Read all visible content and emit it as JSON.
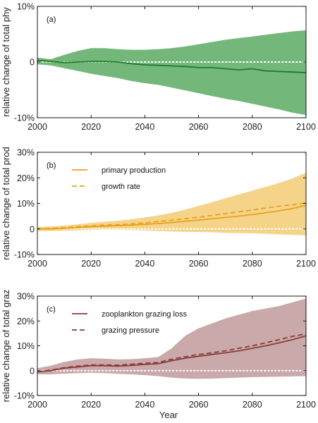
{
  "figure": {
    "xlabel": "Year"
  },
  "chart_data": [
    {
      "type": "line",
      "panel_label": "(a)",
      "ylabel": "relative change of total phy",
      "xlim": [
        2000,
        2100
      ],
      "ylim": [
        -10,
        10
      ],
      "xticks": [
        "2000",
        "2020",
        "2040",
        "2060",
        "2080",
        "2100"
      ],
      "yticks": [
        {
          "value": -10,
          "label": "-10%"
        },
        {
          "value": 0,
          "label": "0"
        },
        {
          "value": 10,
          "label": "10%"
        }
      ],
      "zero_reference_line": "white dotted",
      "colors": {
        "band": "#73b87a",
        "line": "#1e7a2a"
      },
      "x": [
        2000,
        2005,
        2010,
        2015,
        2020,
        2025,
        2030,
        2035,
        2040,
        2045,
        2050,
        2055,
        2060,
        2065,
        2070,
        2075,
        2080,
        2085,
        2090,
        2095,
        2100
      ],
      "band": {
        "upper": [
          0.8,
          0.5,
          1.3,
          2.0,
          2.5,
          2.5,
          2.3,
          2.2,
          2.2,
          2.3,
          2.5,
          2.8,
          3.2,
          3.6,
          4.0,
          4.3,
          4.6,
          4.9,
          5.2,
          5.5,
          5.7
        ],
        "lower": [
          -0.4,
          -0.6,
          -1.1,
          -1.6,
          -2.1,
          -2.5,
          -2.9,
          -3.4,
          -3.8,
          -4.1,
          -4.6,
          -5.1,
          -5.6,
          -6.1,
          -6.6,
          -7.0,
          -7.5,
          -8.0,
          -8.5,
          -9.1,
          -9.5
        ]
      },
      "series": [
        {
          "values": [
            0.3,
            0.1,
            -0.1,
            0.0,
            0.1,
            0.1,
            0.0,
            -0.3,
            -0.5,
            -0.6,
            -0.7,
            -0.8,
            -1.0,
            -1.0,
            -1.2,
            -1.4,
            -1.2,
            -1.6,
            -1.7,
            -1.8,
            -1.9
          ]
        }
      ]
    },
    {
      "type": "line",
      "panel_label": "(b)",
      "ylabel": "relative change of total prod",
      "xlim": [
        2000,
        2100
      ],
      "ylim": [
        -10,
        30
      ],
      "xticks": [
        "2000",
        "2020",
        "2040",
        "2060",
        "2080",
        "2100"
      ],
      "yticks": [
        {
          "value": -10,
          "label": "-10%"
        },
        {
          "value": 0,
          "label": "0"
        },
        {
          "value": 10,
          "label": "10%"
        },
        {
          "value": 20,
          "label": "20%"
        },
        {
          "value": 30,
          "label": "30%"
        }
      ],
      "zero_reference_line": "white dotted",
      "legend_position": "top-left",
      "colors": {
        "band": "#f5d48a",
        "line": "#e8a21c"
      },
      "x": [
        2000,
        2005,
        2010,
        2015,
        2020,
        2025,
        2030,
        2035,
        2040,
        2045,
        2050,
        2055,
        2060,
        2065,
        2070,
        2075,
        2080,
        2085,
        2090,
        2095,
        2100
      ],
      "band": {
        "upper": [
          0.8,
          1.0,
          1.3,
          1.8,
          2.4,
          2.8,
          3.2,
          3.8,
          4.5,
          5.3,
          6.3,
          7.6,
          9.0,
          10.5,
          12.0,
          13.5,
          15.0,
          16.5,
          18.0,
          19.8,
          22.0
        ],
        "lower": [
          -0.8,
          -0.8,
          -0.7,
          -0.6,
          -0.4,
          -0.3,
          -0.3,
          -0.4,
          -0.6,
          -0.8,
          -1.0,
          -1.1,
          -1.2,
          -1.3,
          -1.5,
          -1.6,
          -1.7,
          -1.9,
          -2.1,
          -2.3,
          -2.5
        ]
      },
      "series": [
        {
          "name": "primary production",
          "dash": "solid",
          "values": [
            0.0,
            0.0,
            0.2,
            0.5,
            0.9,
            1.1,
            1.3,
            1.5,
            1.8,
            2.1,
            2.5,
            3.0,
            3.5,
            4.0,
            4.5,
            5.0,
            5.6,
            6.3,
            7.1,
            8.0,
            9.2
          ]
        },
        {
          "name": "growth rate",
          "dash": "dashed",
          "values": [
            0.0,
            0.2,
            0.5,
            0.9,
            1.2,
            1.5,
            1.7,
            2.0,
            2.4,
            2.9,
            3.4,
            4.0,
            4.6,
            5.3,
            6.0,
            6.7,
            7.4,
            8.2,
            8.9,
            9.5,
            10.2
          ]
        }
      ]
    },
    {
      "type": "line",
      "panel_label": "(c)",
      "ylabel": "relative change of total graz",
      "xlim": [
        2000,
        2100
      ],
      "ylim": [
        -10,
        30
      ],
      "xticks": [
        "2000",
        "2020",
        "2040",
        "2060",
        "2080",
        "2100"
      ],
      "yticks": [
        {
          "value": -10,
          "label": "-10%"
        },
        {
          "value": 0,
          "label": "0"
        },
        {
          "value": 10,
          "label": "10%"
        },
        {
          "value": 20,
          "label": "20%"
        },
        {
          "value": 30,
          "label": "30%"
        }
      ],
      "zero_reference_line": "white dotted",
      "legend_position": "top-left",
      "colors": {
        "band": "#c9a9a9",
        "line": "#8a3c3c"
      },
      "x": [
        2000,
        2005,
        2010,
        2015,
        2020,
        2025,
        2030,
        2035,
        2040,
        2045,
        2050,
        2055,
        2060,
        2065,
        2070,
        2075,
        2080,
        2085,
        2090,
        2095,
        2100
      ],
      "band": {
        "upper": [
          1.0,
          2.0,
          3.5,
          4.5,
          5.0,
          4.8,
          4.5,
          4.6,
          5.0,
          5.5,
          9.0,
          14.0,
          17.0,
          19.0,
          21.0,
          22.5,
          24.0,
          25.0,
          26.0,
          27.5,
          29.0
        ],
        "lower": [
          -1.5,
          -1.5,
          -1.2,
          -1.0,
          -0.8,
          -1.0,
          -1.3,
          -1.5,
          -1.8,
          -2.2,
          -2.8,
          -3.2,
          -3.3,
          -3.2,
          -3.0,
          -2.8,
          -2.6,
          -2.5,
          -2.4,
          -2.3,
          -2.2
        ]
      },
      "series": [
        {
          "name": "zooplankton grazing loss",
          "dash": "solid",
          "values": [
            -0.5,
            0.0,
            1.0,
            1.5,
            2.0,
            2.0,
            1.8,
            2.1,
            2.5,
            2.8,
            4.0,
            5.0,
            5.8,
            6.5,
            7.2,
            8.0,
            9.0,
            10.0,
            11.2,
            12.5,
            14.0
          ]
        },
        {
          "name": "grazing pressure",
          "dash": "dashed",
          "values": [
            -0.5,
            0.2,
            1.2,
            1.8,
            2.3,
            2.3,
            2.2,
            2.6,
            3.0,
            3.3,
            4.6,
            5.6,
            6.5,
            7.2,
            8.0,
            9.0,
            10.0,
            11.2,
            12.5,
            13.8,
            14.8
          ]
        }
      ]
    }
  ]
}
